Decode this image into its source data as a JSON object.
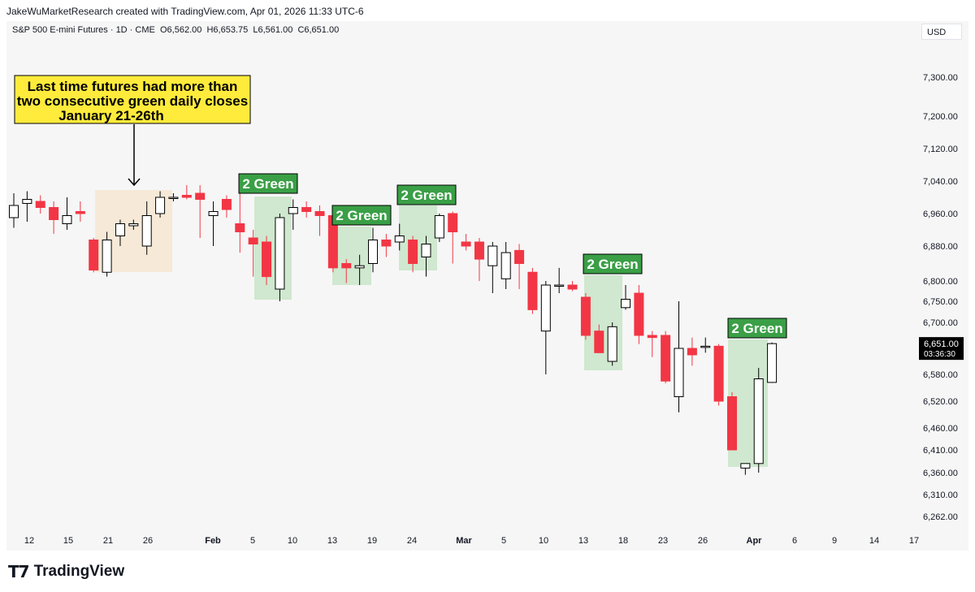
{
  "header": {
    "text": "JakeWuMarketResearch created with TradingView.com, Apr 01, 2026 11:33 UTC-6"
  },
  "instrument": {
    "title": "S&P 500 E-mini Futures · 1D · CME",
    "open": "O6,562.00",
    "high": "H6,653.75",
    "low": "L6,561.00",
    "close": "C6,651.00"
  },
  "currency": "USD",
  "footer": {
    "logo_mark": "T7",
    "logo_text": "TradingView"
  },
  "colors": {
    "up_body": "#ffffff",
    "up_stroke": "#000000",
    "down": "#f23645",
    "green_zone": "#cfe8cf",
    "tan_zone": "#f6e9d7",
    "label_bg": "#3a9f46",
    "callout_bg": "#ffeb3b"
  },
  "chart_data": {
    "type": "candlestick",
    "title": "S&P 500 E-mini Futures · 1D · CME",
    "ylabel": "USD",
    "y_ticks": [
      "7,300.00",
      "7,200.00",
      "7,120.00",
      "7,040.00",
      "6,960.00",
      "6,880.00",
      "6,800.00",
      "6,750.00",
      "6,700.00",
      "6,580.00",
      "6,520.00",
      "6,460.00",
      "6,410.00",
      "6,360.00",
      "6,310.00",
      "6,262.00"
    ],
    "x_ticks": [
      "12",
      "15",
      "21",
      "26",
      "Feb",
      "5",
      "10",
      "13",
      "19",
      "24",
      "Mar",
      "5",
      "10",
      "13",
      "18",
      "23",
      "26",
      "Apr",
      "6",
      "9",
      "14",
      "17"
    ],
    "last_price": "6,651.00",
    "countdown": "03:36:30",
    "candles": [
      {
        "d": "Jan 9",
        "o": 6950,
        "h": 7010,
        "l": 6925,
        "c": 6980
      },
      {
        "d": "Jan 12",
        "o": 6985,
        "h": 7015,
        "l": 6940,
        "c": 6995
      },
      {
        "d": "Jan 13",
        "o": 6990,
        "h": 7005,
        "l": 6960,
        "c": 6975
      },
      {
        "d": "Jan 14",
        "o": 6975,
        "h": 6990,
        "l": 6910,
        "c": 6945
      },
      {
        "d": "Jan 15",
        "o": 6935,
        "h": 7000,
        "l": 6920,
        "c": 6955
      },
      {
        "d": "Jan 16",
        "o": 6965,
        "h": 6990,
        "l": 6940,
        "c": 6960
      },
      {
        "d": "Jan 20",
        "o": 6895,
        "h": 6900,
        "l": 6820,
        "c": 6825
      },
      {
        "d": "Jan 21",
        "o": 6820,
        "h": 6915,
        "l": 6810,
        "c": 6895
      },
      {
        "d": "Jan 22",
        "o": 6905,
        "h": 6945,
        "l": 6880,
        "c": 6935
      },
      {
        "d": "Jan 23",
        "o": 6930,
        "h": 6945,
        "l": 6920,
        "c": 6935
      },
      {
        "d": "Jan 26",
        "o": 6880,
        "h": 6990,
        "l": 6860,
        "c": 6955
      },
      {
        "d": "Jan 27",
        "o": 6960,
        "h": 7015,
        "l": 6950,
        "c": 7000
      },
      {
        "d": "Jan 28",
        "o": 7000,
        "h": 7010,
        "l": 6990,
        "c": 7000
      },
      {
        "d": "Jan 29",
        "o": 7005,
        "h": 7030,
        "l": 6995,
        "c": 7000
      },
      {
        "d": "Jan 30",
        "o": 7010,
        "h": 7030,
        "l": 6900,
        "c": 6995
      },
      {
        "d": "Feb 2",
        "o": 6955,
        "h": 6990,
        "l": 6880,
        "c": 6965
      },
      {
        "d": "Feb 3",
        "o": 6995,
        "h": 7005,
        "l": 6950,
        "c": 6970
      },
      {
        "d": "Feb 4",
        "o": 6935,
        "h": 7010,
        "l": 6865,
        "c": 6915
      },
      {
        "d": "Feb 5",
        "o": 6900,
        "h": 6920,
        "l": 6810,
        "c": 6885
      },
      {
        "d": "Feb 6",
        "o": 6890,
        "h": 6905,
        "l": 6790,
        "c": 6810
      },
      {
        "d": "Feb 9",
        "o": 6780,
        "h": 6960,
        "l": 6750,
        "c": 6950
      },
      {
        "d": "Feb 10",
        "o": 6960,
        "h": 6995,
        "l": 6920,
        "c": 6975
      },
      {
        "d": "Feb 11",
        "o": 6975,
        "h": 6990,
        "l": 6950,
        "c": 6965
      },
      {
        "d": "Feb 12",
        "o": 6965,
        "h": 6980,
        "l": 6905,
        "c": 6955
      },
      {
        "d": "Feb 13",
        "o": 6955,
        "h": 6955,
        "l": 6820,
        "c": 6830
      },
      {
        "d": "Feb 17",
        "o": 6840,
        "h": 6850,
        "l": 6795,
        "c": 6830
      },
      {
        "d": "Feb 18",
        "o": 6830,
        "h": 6860,
        "l": 6790,
        "c": 6835
      },
      {
        "d": "Feb 19",
        "o": 6840,
        "h": 6925,
        "l": 6820,
        "c": 6895
      },
      {
        "d": "Feb 20",
        "o": 6895,
        "h": 6910,
        "l": 6855,
        "c": 6880
      },
      {
        "d": "Feb 23",
        "o": 6890,
        "h": 6935,
        "l": 6870,
        "c": 6905
      },
      {
        "d": "Feb 24",
        "o": 6895,
        "h": 6905,
        "l": 6820,
        "c": 6840
      },
      {
        "d": "Feb 25",
        "o": 6855,
        "h": 6905,
        "l": 6810,
        "c": 6885
      },
      {
        "d": "Feb 26",
        "o": 6900,
        "h": 6960,
        "l": 6890,
        "c": 6955
      },
      {
        "d": "Feb 27",
        "o": 6960,
        "h": 6965,
        "l": 6840,
        "c": 6915
      },
      {
        "d": "Mar 2",
        "o": 6890,
        "h": 6910,
        "l": 6870,
        "c": 6880
      },
      {
        "d": "Mar 3",
        "o": 6890,
        "h": 6900,
        "l": 6800,
        "c": 6850
      },
      {
        "d": "Mar 4",
        "o": 6835,
        "h": 6890,
        "l": 6770,
        "c": 6880
      },
      {
        "d": "Mar 5",
        "o": 6805,
        "h": 6890,
        "l": 6780,
        "c": 6865
      },
      {
        "d": "Mar 6",
        "o": 6870,
        "h": 6885,
        "l": 6780,
        "c": 6840
      },
      {
        "d": "Mar 9",
        "o": 6820,
        "h": 6830,
        "l": 6720,
        "c": 6730
      },
      {
        "d": "Mar 10",
        "o": 6680,
        "h": 6800,
        "l": 6580,
        "c": 6790
      },
      {
        "d": "Mar 11",
        "o": 6790,
        "h": 6830,
        "l": 6770,
        "c": 6790
      },
      {
        "d": "Mar 12",
        "o": 6790,
        "h": 6800,
        "l": 6775,
        "c": 6780
      },
      {
        "d": "Mar 13",
        "o": 6760,
        "h": 6770,
        "l": 6660,
        "c": 6670
      },
      {
        "d": "Mar 16",
        "o": 6680,
        "h": 6695,
        "l": 6630,
        "c": 6630
      },
      {
        "d": "Mar 17",
        "o": 6610,
        "h": 6700,
        "l": 6600,
        "c": 6690
      },
      {
        "d": "Mar 18",
        "o": 6735,
        "h": 6790,
        "l": 6730,
        "c": 6755
      },
      {
        "d": "Mar 19",
        "o": 6770,
        "h": 6790,
        "l": 6650,
        "c": 6670
      },
      {
        "d": "Mar 20",
        "o": 6670,
        "h": 6680,
        "l": 6620,
        "c": 6665
      },
      {
        "d": "Mar 23",
        "o": 6670,
        "h": 6680,
        "l": 6560,
        "c": 6565
      },
      {
        "d": "Mar 24",
        "o": 6530,
        "h": 6750,
        "l": 6495,
        "c": 6640
      },
      {
        "d": "Mar 25",
        "o": 6640,
        "h": 6665,
        "l": 6600,
        "c": 6625
      },
      {
        "d": "Mar 26",
        "o": 6645,
        "h": 6665,
        "l": 6630,
        "c": 6645
      },
      {
        "d": "Mar 27",
        "o": 6645,
        "h": 6650,
        "l": 6510,
        "c": 6520
      },
      {
        "d": "Mar 30",
        "o": 6530,
        "h": 6540,
        "l": 6410,
        "c": 6410
      },
      {
        "d": "Mar 31",
        "o": 6370,
        "h": 6375,
        "l": 6355,
        "c": 6380
      },
      {
        "d": "Apr 1",
        "o": 6380,
        "h": 6595,
        "l": 6360,
        "c": 6570
      },
      {
        "d": "Apr 1b",
        "o": 6562,
        "h": 6653.75,
        "l": 6561,
        "c": 6651
      }
    ],
    "annotations": [
      {
        "text": "2 Green",
        "target": "Feb 9-10"
      },
      {
        "text": "2 Green",
        "target": "Feb 17-19"
      },
      {
        "text": "2 Green",
        "target": "Feb 24-26"
      },
      {
        "text": "2 Green",
        "target": "Mar 17-18"
      },
      {
        "text": "2 Green",
        "target": "Mar 31-Apr 1"
      }
    ],
    "callout": {
      "lines": [
        "Last time futures had more than",
        "two consecutive green daily closes",
        "January 21-26th"
      ]
    }
  }
}
